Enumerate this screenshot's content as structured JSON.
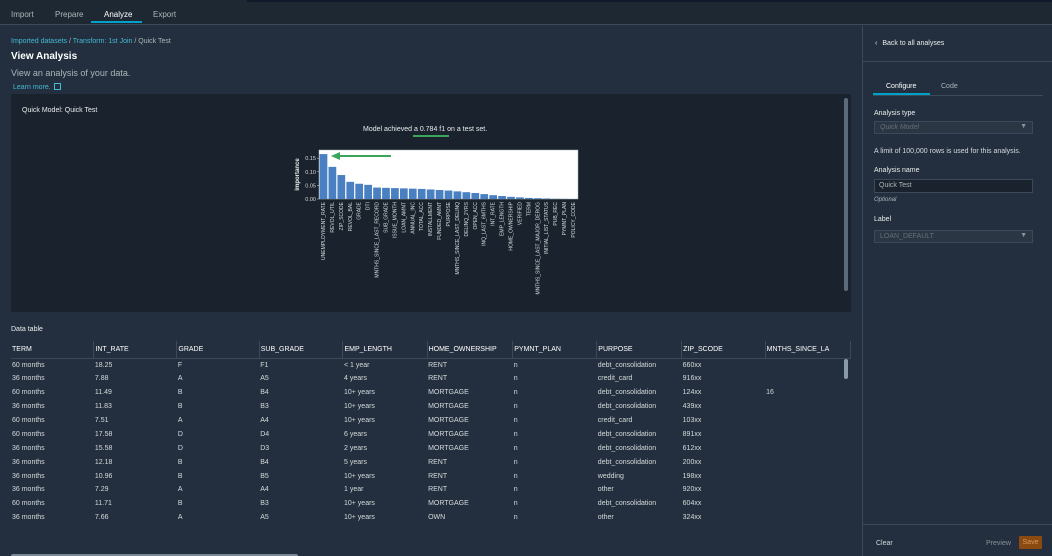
{
  "nav": {
    "tabs": [
      {
        "label": "Import"
      },
      {
        "label": "Prepare"
      },
      {
        "label": "Analyze"
      },
      {
        "label": "Export"
      }
    ],
    "active_tab": "Analyze"
  },
  "breadcrumb": {
    "items": [
      "Imported datasets",
      "Transform: 1st Join",
      "Quick Test"
    ],
    "separator": "/"
  },
  "page": {
    "title": "View Analysis",
    "subtitle": "View an analysis of your data.",
    "learn_more": "Learn more."
  },
  "analysis": {
    "panel_title": "Quick Model: Quick Test",
    "metric_prefix": "Model achieved a",
    "metric_score": "0.784 f1",
    "metric_suffix": "on a test set.",
    "annotation_arrow_color": "#3aa65c"
  },
  "chart_data": {
    "type": "bar",
    "ylabel": "importance",
    "xlabel": "",
    "ylim": [
      0,
      0.18
    ],
    "yticks": [
      "0.15",
      "0.10",
      "0.05",
      "0.00"
    ],
    "bar_color": "#4a7fc1",
    "categories": [
      "UNEMPLOYMENT_RATE",
      "REVOL_UTIL",
      "ZIP_SCODE",
      "REVOL_BAL",
      "GRADE",
      "DTI",
      "MNTHS_SINCE_LAST_RECORD",
      "SUB_GRADE",
      "ISSUE_MONTH",
      "LOAN_AMNT",
      "ANNUAL_INC",
      "TOTAL_ACC",
      "INSTALLMENT",
      "FUNDED_AMNT",
      "PURPOSE",
      "MNTHS_SINCE_LAST_DELINQ",
      "DELINQ_2YRS",
      "OPEN_ACC",
      "INQ_LAST_6MTHS",
      "INT_RATE",
      "EMP_LENGTH",
      "HOME_OWNERSHIP",
      "VERIFIED",
      "TERM",
      "MNTHS_SINCE_LAST_MAJOR_DEROG",
      "INITIAL_LIST_STATUS",
      "PUB_REC",
      "PYMNT_PLAN",
      "POLICY_CODE"
    ],
    "values": [
      0.165,
      0.118,
      0.088,
      0.063,
      0.056,
      0.052,
      0.042,
      0.041,
      0.04,
      0.039,
      0.038,
      0.037,
      0.035,
      0.033,
      0.031,
      0.028,
      0.025,
      0.022,
      0.018,
      0.014,
      0.011,
      0.008,
      0.006,
      0.004,
      0.003,
      0.002,
      0.001,
      0.0005,
      0.0
    ]
  },
  "data_table": {
    "label": "Data table",
    "columns": [
      "TERM",
      "INT_RATE",
      "GRADE",
      "SUB_GRADE",
      "EMP_LENGTH",
      "HOME_OWNERSHIP",
      "PYMNT_PLAN",
      "PURPOSE",
      "ZIP_SCODE",
      "MNTHS_SINCE_LA"
    ],
    "rows": [
      [
        "60 months",
        "18.25",
        "F",
        "F1",
        "< 1 year",
        "RENT",
        "n",
        "debt_consolidation",
        "660xx",
        ""
      ],
      [
        "36 months",
        "7.88",
        "A",
        "A5",
        "4 years",
        "RENT",
        "n",
        "credit_card",
        "916xx",
        ""
      ],
      [
        "60 months",
        "11.49",
        "B",
        "B4",
        "10+ years",
        "MORTGAGE",
        "n",
        "debt_consolidation",
        "124xx",
        "16"
      ],
      [
        "36 months",
        "11.83",
        "B",
        "B3",
        "10+ years",
        "MORTGAGE",
        "n",
        "debt_consolidation",
        "439xx",
        ""
      ],
      [
        "60 months",
        "7.51",
        "A",
        "A4",
        "10+ years",
        "MORTGAGE",
        "n",
        "credit_card",
        "103xx",
        ""
      ],
      [
        "60 months",
        "17.58",
        "D",
        "D4",
        "6 years",
        "MORTGAGE",
        "n",
        "debt_consolidation",
        "891xx",
        ""
      ],
      [
        "36 months",
        "15.58",
        "D",
        "D3",
        "2 years",
        "MORTGAGE",
        "n",
        "debt_consolidation",
        "612xx",
        ""
      ],
      [
        "36 months",
        "12.18",
        "B",
        "B4",
        "5 years",
        "RENT",
        "n",
        "debt_consolidation",
        "200xx",
        ""
      ],
      [
        "36 months",
        "10.96",
        "B",
        "B5",
        "10+ years",
        "RENT",
        "n",
        "wedding",
        "198xx",
        ""
      ],
      [
        "36 months",
        "7.29",
        "A",
        "A4",
        "1 year",
        "RENT",
        "n",
        "other",
        "920xx",
        ""
      ],
      [
        "60 months",
        "11.71",
        "B",
        "B3",
        "10+ years",
        "MORTGAGE",
        "n",
        "debt_consolidation",
        "604xx",
        ""
      ],
      [
        "36 months",
        "7.66",
        "A",
        "A5",
        "10+ years",
        "OWN",
        "n",
        "other",
        "324xx",
        ""
      ]
    ]
  },
  "side_panel": {
    "back_label": "Back to all analyses",
    "tabs": [
      "Configure",
      "Code"
    ],
    "analysis_type_label": "Analysis type",
    "analysis_type_value": "Quick Model",
    "row_limit_note": "A limit of 100,000 rows is used for this analysis.",
    "analysis_name_label": "Analysis name",
    "analysis_name_value": "Quick Test",
    "optional_hint": "Optional",
    "label_label": "Label",
    "label_value": "LOAN_DEFAULT",
    "clear_button": "Clear",
    "preview_button": "Preview",
    "save_button": "Save"
  },
  "icons": {
    "back": "chevron-left-icon",
    "external": "external-link-icon",
    "select_caret": "caret-down-icon"
  }
}
